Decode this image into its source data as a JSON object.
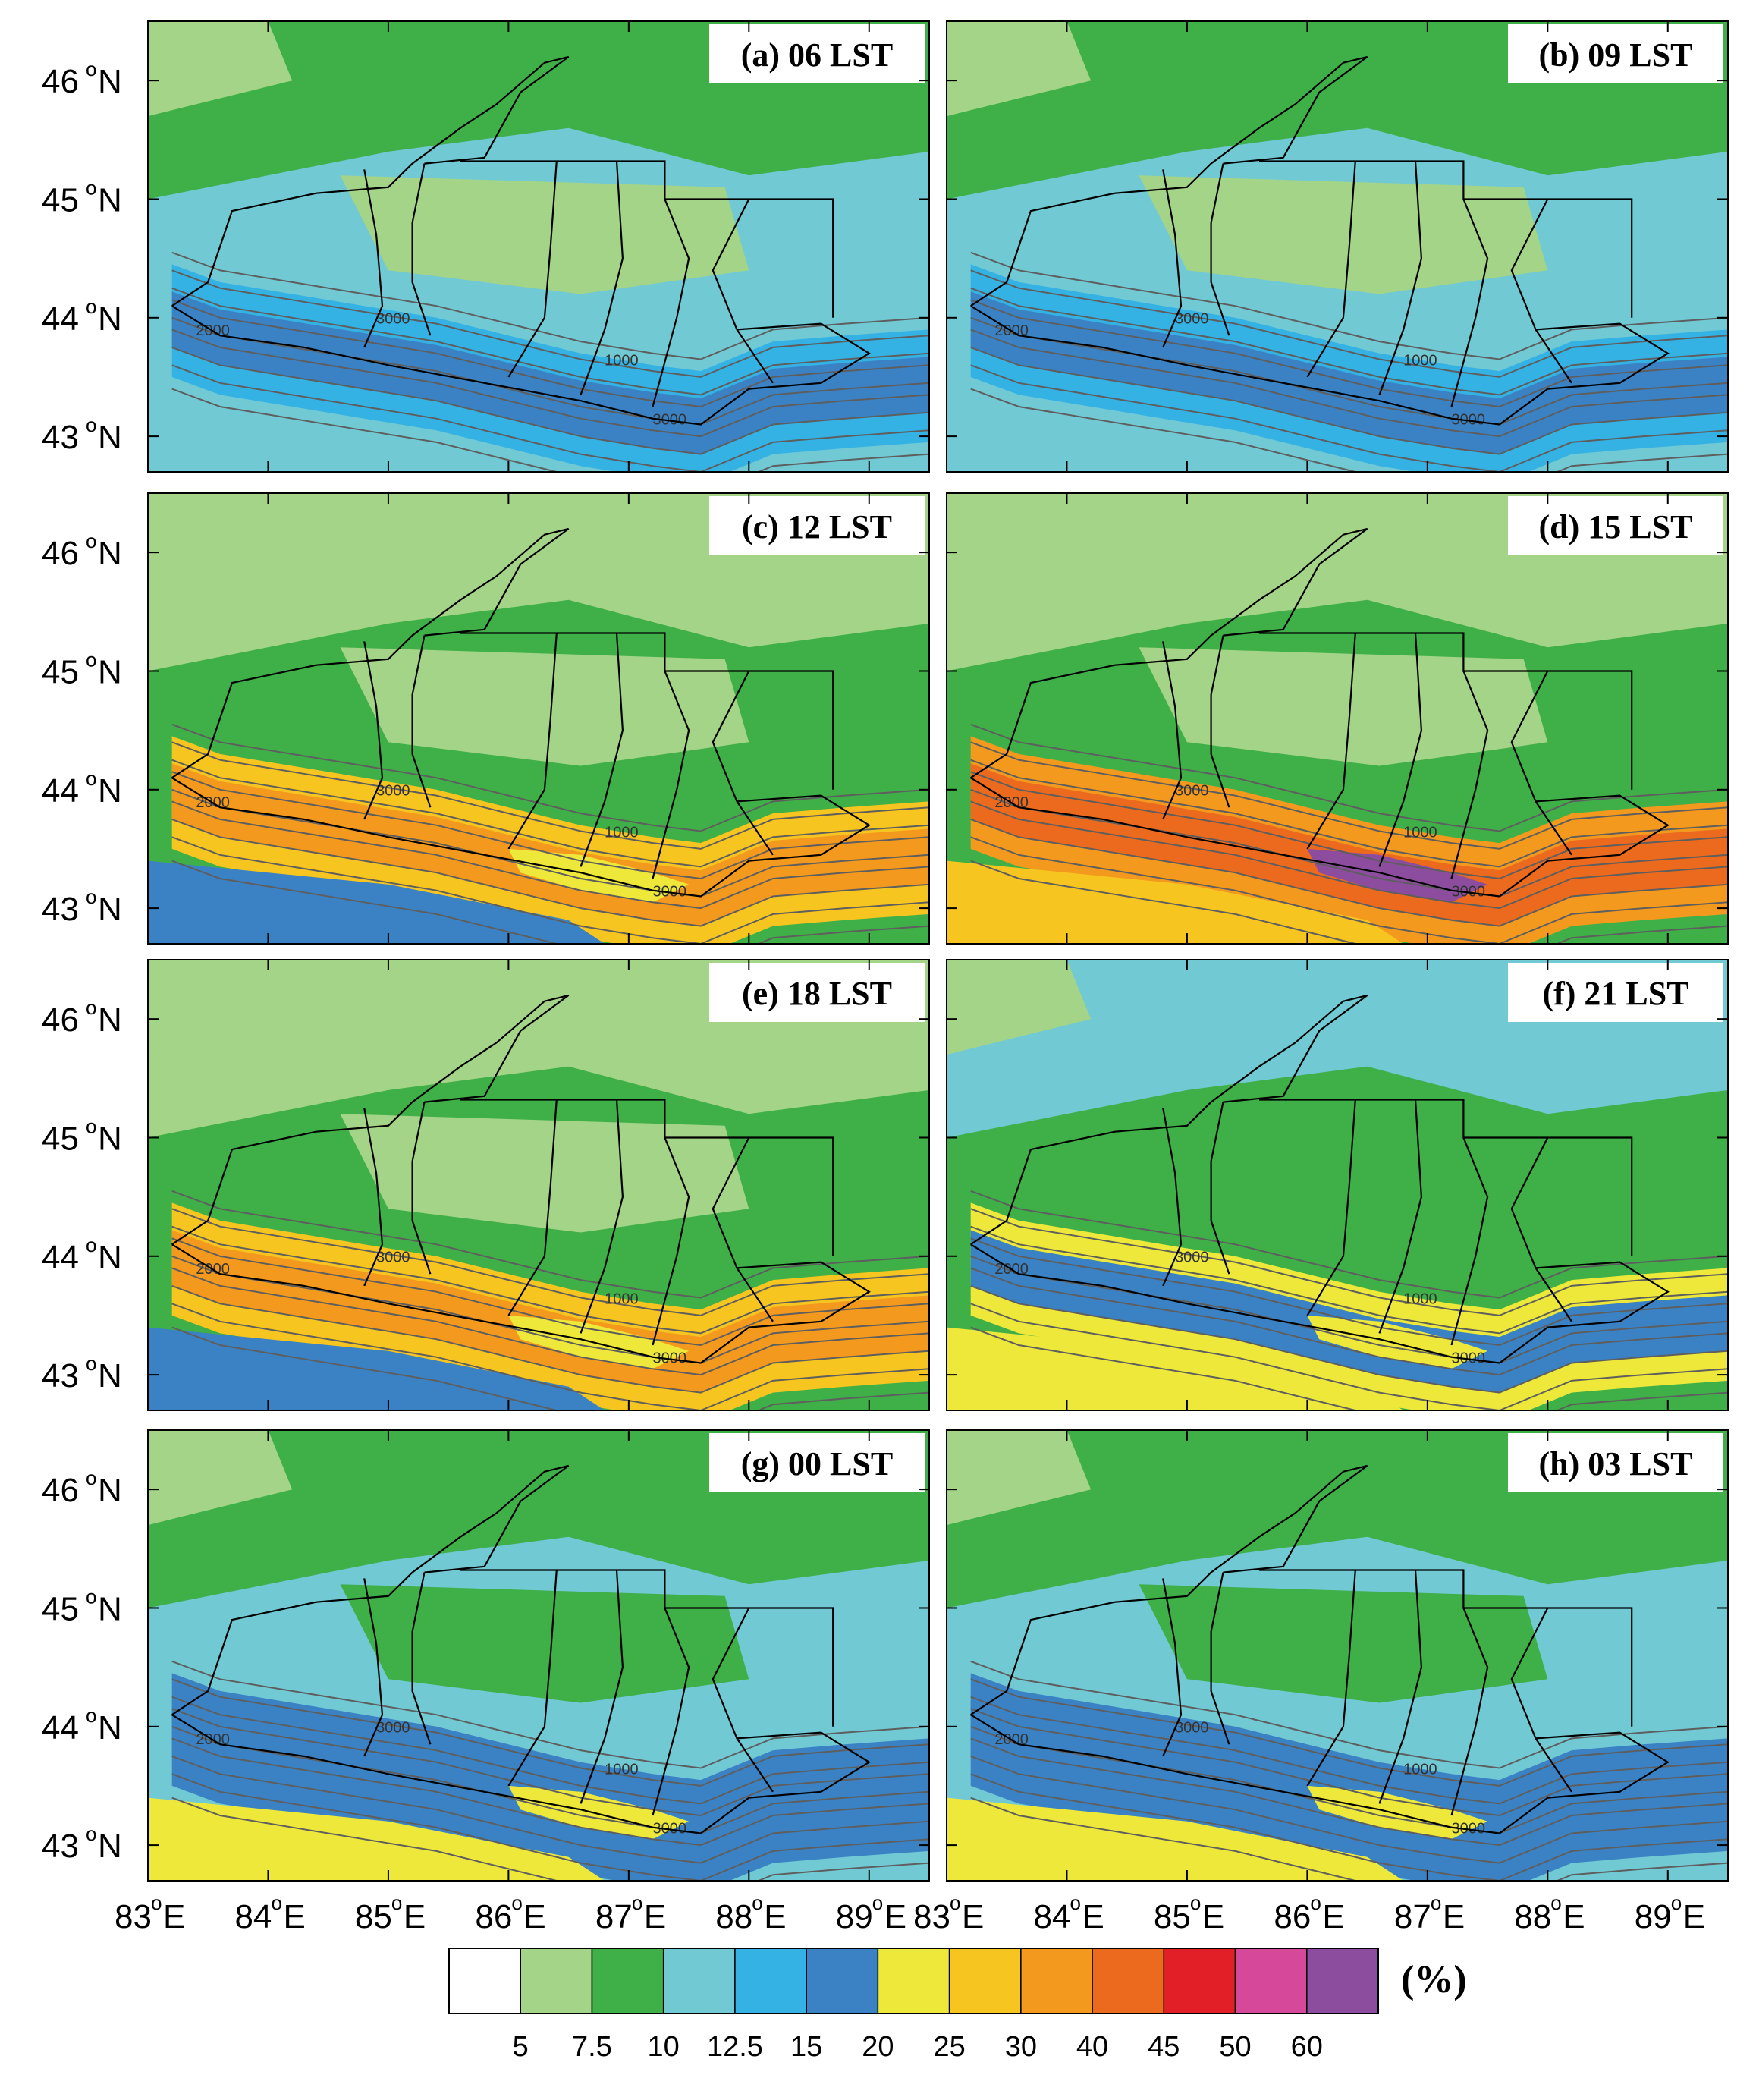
{
  "panels": [
    {
      "label": "(a) 06 LST",
      "field": "low",
      "stage": 0
    },
    {
      "label": "(b) 09 LST",
      "field": "low",
      "stage": 0
    },
    {
      "label": "(c) 12 LST",
      "field": "mid",
      "stage": 1
    },
    {
      "label": "(d) 15 LST",
      "field": "high",
      "stage": 2
    },
    {
      "label": "(e) 18 LST",
      "field": "mid",
      "stage": 1
    },
    {
      "label": "(f) 21 LST",
      "field": "mild",
      "stage": 3
    },
    {
      "label": "(g) 00 LST",
      "field": "night",
      "stage": 4
    },
    {
      "label": "(h) 03 LST",
      "field": "night",
      "stage": 4
    }
  ],
  "lat_ticks": [
    {
      "value": 46,
      "num": "46",
      "deg": "o",
      "hem": "N"
    },
    {
      "value": 45,
      "num": "45",
      "deg": "o",
      "hem": "N"
    },
    {
      "value": 44,
      "num": "44",
      "deg": "o",
      "hem": "N"
    },
    {
      "value": 43,
      "num": "43",
      "deg": "o",
      "hem": "N"
    }
  ],
  "lon_ticks": [
    {
      "value": 83,
      "num": "83",
      "deg": "o",
      "hem": "E"
    },
    {
      "value": 84,
      "num": "84",
      "deg": "o",
      "hem": "E"
    },
    {
      "value": 85,
      "num": "85",
      "deg": "o",
      "hem": "E"
    },
    {
      "value": 86,
      "num": "86",
      "deg": "o",
      "hem": "E"
    },
    {
      "value": 87,
      "num": "87",
      "deg": "o",
      "hem": "E"
    },
    {
      "value": 88,
      "num": "88",
      "deg": "o",
      "hem": "E"
    },
    {
      "value": 89,
      "num": "89",
      "deg": "o",
      "hem": "E"
    }
  ],
  "map_extent": {
    "lon": [
      83,
      89.5
    ],
    "lat": [
      42.7,
      46.5
    ]
  },
  "contour_labels": [
    "1000",
    "2000",
    "3000"
  ],
  "colorbar": {
    "colors": [
      "#ffffff",
      "#a3d487",
      "#3faf48",
      "#71c9d4",
      "#34b2e4",
      "#3a82c4",
      "#ede839",
      "#f7c51f",
      "#f39a1e",
      "#ec6a1e",
      "#e21f26",
      "#d6489a",
      "#8c4d9f"
    ],
    "labels": [
      "5",
      "7.5",
      "10",
      "12.5",
      "15",
      "20",
      "25",
      "30",
      "40",
      "45",
      "50",
      "60"
    ],
    "unit": "(%)"
  },
  "colors": {
    "border": "#000000",
    "contour": "#5e5e5e"
  }
}
